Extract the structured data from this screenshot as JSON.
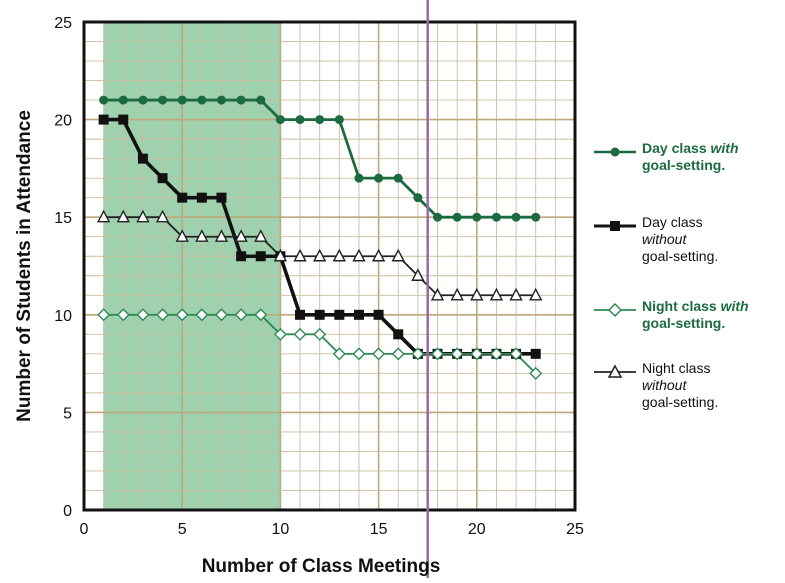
{
  "chart_data": {
    "type": "line",
    "xlabel": "Number of Class Meetings",
    "ylabel": "Number of Students in Attendance",
    "xlim": [
      0,
      25
    ],
    "ylim": [
      0,
      25
    ],
    "xticks": [
      0,
      5,
      10,
      15,
      20,
      25
    ],
    "yticks": [
      0,
      5,
      10,
      15,
      20,
      25
    ],
    "x_tick_labels": [
      "0",
      "5",
      "10",
      "15",
      "20",
      "25"
    ],
    "y_tick_labels": [
      "0",
      "5",
      "10",
      "15",
      "20",
      "25"
    ],
    "grid": true,
    "legend_position": "right",
    "shaded_region": {
      "x_from": 1,
      "x_to": 10,
      "color": "#8fc9a0"
    },
    "marker_line": {
      "x": 17.5,
      "color": "#9a6aa8"
    },
    "x": [
      1,
      2,
      3,
      4,
      5,
      6,
      7,
      8,
      9,
      10,
      11,
      12,
      13,
      14,
      15,
      16,
      17,
      18,
      19,
      20,
      21,
      22,
      23
    ],
    "series": [
      {
        "name": "Day class with goal-setting.",
        "marker": "filled-circle",
        "color": "#1c6b40",
        "values": [
          21,
          21,
          21,
          21,
          21,
          21,
          21,
          21,
          21,
          20,
          20,
          20,
          20,
          17,
          17,
          17,
          16,
          15,
          15,
          15,
          15,
          15,
          15
        ]
      },
      {
        "name": "Day class without goal-setting.",
        "marker": "filled-square",
        "color": "#111111",
        "values": [
          20,
          20,
          18,
          17,
          16,
          16,
          16,
          13,
          13,
          13,
          10,
          10,
          10,
          10,
          10,
          9,
          8,
          8,
          8,
          8,
          8,
          8,
          8
        ]
      },
      {
        "name": "Night class with goal-setting.",
        "marker": "open-diamond",
        "color": "#2e8a55",
        "values": [
          10,
          10,
          10,
          10,
          10,
          10,
          10,
          10,
          10,
          9,
          9,
          9,
          8,
          8,
          8,
          8,
          8,
          8,
          8,
          8,
          8,
          8,
          7
        ]
      },
      {
        "name": "Night class without goal-setting.",
        "marker": "open-triangle",
        "color": "#222222",
        "values": [
          15,
          15,
          15,
          15,
          14,
          14,
          14,
          14,
          14,
          13,
          13,
          13,
          13,
          13,
          13,
          13,
          12,
          11,
          11,
          11,
          11,
          11,
          11
        ]
      }
    ]
  },
  "legend": [
    {
      "line1_plain": "Day class ",
      "line1_em": "with",
      "line2": "goal-setting."
    },
    {
      "line1_plain": "Day class",
      "line1_em": "",
      "line2_em": "without",
      "line3": "goal-setting."
    },
    {
      "line1_plain": "Night class ",
      "line1_em": "with",
      "line2": "goal-setting."
    },
    {
      "line1_plain": "Night class",
      "line1_em": "",
      "line2_em": "without",
      "line3": "goal-setting."
    }
  ]
}
